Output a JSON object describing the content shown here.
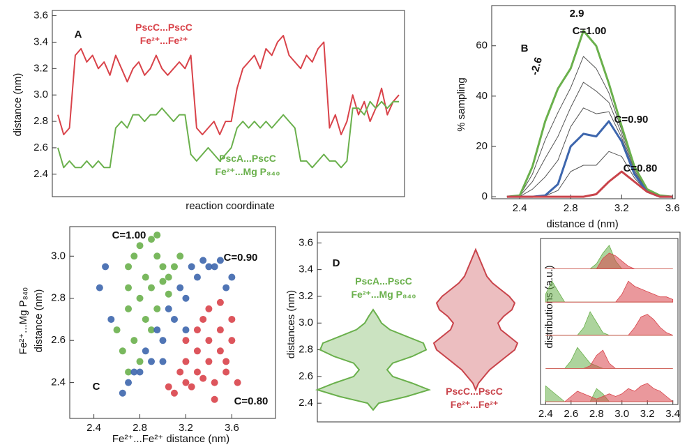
{
  "chart_data": [
    {
      "type": "line",
      "panel": "A",
      "ylabel": "distance (nm)",
      "xlabel": "reaction coordinate",
      "ylim": [
        2.23,
        3.64
      ],
      "yticks": [
        2.4,
        2.6,
        2.8,
        {
          "value": 3,
          "label": "3.0"
        },
        3.2,
        3.4,
        3.6
      ],
      "series": [
        {
          "name": "PscC...PscC\nFe²⁺...Fe²⁺",
          "color": "#d9434a",
          "values": [
            2.85,
            2.7,
            2.75,
            3.3,
            3.35,
            3.25,
            3.3,
            3.2,
            3.25,
            3.15,
            3.3,
            3.2,
            3.1,
            3.2,
            3.25,
            3.15,
            3.2,
            3.3,
            3.2,
            3.15,
            3.2,
            3.25,
            3.2,
            3.3,
            2.75,
            2.7,
            2.75,
            2.8,
            2.7,
            2.8,
            2.8,
            3.05,
            3.2,
            3.25,
            3.3,
            3.2,
            3.35,
            3.3,
            3.4,
            3.45,
            3.3,
            3.25,
            3.2,
            3.3,
            3.25,
            3.35,
            3.4,
            2.75,
            2.85,
            2.7,
            2.8,
            3.0,
            2.85,
            2.95,
            2.8,
            2.9,
            3.05,
            2.85,
            2.95,
            3.0
          ]
        },
        {
          "name": "PscA...PscC\nFe²⁺...Mg P₈₄₀",
          "color": "#6ab04c",
          "values": [
            2.6,
            2.45,
            2.5,
            2.45,
            2.45,
            2.5,
            2.45,
            2.5,
            2.45,
            2.45,
            2.75,
            2.8,
            2.75,
            2.85,
            2.85,
            2.8,
            2.85,
            2.85,
            2.9,
            2.85,
            2.8,
            2.85,
            2.85,
            2.55,
            2.5,
            2.55,
            2.6,
            2.55,
            2.5,
            2.55,
            2.6,
            2.75,
            2.8,
            2.75,
            2.8,
            2.75,
            2.8,
            2.75,
            2.8,
            2.85,
            2.8,
            2.75,
            2.5,
            2.5,
            2.45,
            2.5,
            2.55,
            2.5,
            2.5,
            2.45,
            2.5,
            2.9,
            2.9,
            2.85,
            2.95,
            2.9,
            2.95,
            2.9,
            2.95,
            2.95
          ]
        }
      ]
    },
    {
      "type": "line",
      "panel": "B",
      "ylabel": "% sampling",
      "xlabel": "distance d (nm)",
      "x": [
        2.3,
        2.4,
        2.5,
        2.6,
        2.7,
        2.8,
        2.9,
        3.0,
        3.1,
        3.2,
        3.3,
        3.4,
        3.5,
        3.6
      ],
      "xlim": [
        2.18,
        3.62
      ],
      "xticks": [
        2.4,
        2.8,
        3.2,
        3.6
      ],
      "ylim": [
        -0.8,
        76
      ],
      "yticks": [
        0,
        20,
        40,
        60
      ],
      "annotations": [
        "2.9",
        "-2.6"
      ],
      "series": [
        {
          "color": "#555555",
          "values": [
            0,
            0.4,
            9,
            22.6,
            33.5,
            43.3,
            55.8,
            51,
            41.3,
            26.5,
            11.3,
            2.8,
            0.4,
            0
          ]
        },
        {
          "color": "#555555",
          "values": [
            0,
            0.3,
            6,
            15.3,
            24,
            35.5,
            45.5,
            42,
            37.5,
            25,
            10.5,
            2.5,
            0.3,
            0
          ]
        },
        {
          "color": "#555555",
          "values": [
            0,
            0.1,
            3,
            7.9,
            14.5,
            27.8,
            35.3,
            33,
            33.8,
            23.5,
            9.8,
            2.3,
            0.1,
            0
          ]
        },
        {
          "color": "#555555",
          "values": [
            0,
            0,
            0,
            0.3,
            2.5,
            10,
            12.5,
            12.5,
            18,
            16,
            7.5,
            2,
            0,
            0
          ]
        },
        {
          "name": "C=1.00",
          "color": "#6ab04c",
          "values": [
            0,
            0.5,
            12,
            30,
            43,
            51,
            66,
            60,
            45,
            28,
            12,
            3,
            0.5,
            0
          ]
        },
        {
          "name": "C=0.90",
          "color": "#3d66ad",
          "values": [
            0,
            0,
            0,
            0.5,
            5,
            20,
            25,
            24,
            30,
            22,
            9,
            2,
            0,
            0
          ]
        },
        {
          "name": "C=0.80",
          "color": "#c9444b",
          "values": [
            0,
            0,
            0,
            0,
            0,
            0,
            0,
            1,
            6,
            10,
            6,
            2,
            0,
            0
          ]
        }
      ]
    },
    {
      "type": "scatter",
      "panel": "C",
      "ylabel": [
        "Fe²⁺...Mg P₈₄₀",
        "distance (nm)"
      ],
      "xlabel": "Fe²⁺...Fe²⁺ distance (nm)",
      "xlim": [
        2.19,
        3.98
      ],
      "xticks": [
        2.4,
        2.8,
        3.2,
        3.6
      ],
      "ylim": [
        2.23,
        3.14
      ],
      "yticks": [
        2.4,
        2.6,
        2.8,
        {
          "value": 3,
          "label": "3.0"
        }
      ],
      "series": [
        {
          "name": "C=1.00",
          "color": "#6ab04c",
          "x": [
            2.7,
            2.75,
            2.8,
            2.85,
            2.9,
            2.95,
            3.0,
            3.05,
            3.1,
            2.7,
            2.8,
            2.9,
            3.0,
            2.75,
            2.85,
            2.95,
            3.05,
            2.7,
            2.8,
            2.9,
            2.65,
            2.7,
            2.95,
            3.15,
            2.6
          ],
          "values": [
            2.95,
            3.0,
            3.05,
            2.9,
            3.08,
            3.0,
            2.95,
            2.9,
            2.95,
            2.75,
            2.8,
            2.85,
            2.88,
            2.6,
            2.7,
            2.75,
            2.82,
            2.45,
            2.5,
            2.65,
            2.55,
            2.85,
            3.1,
            3.0,
            2.65
          ]
        },
        {
          "name": "C=0.90",
          "color": "#3d66ad",
          "x": [
            2.7,
            2.8,
            2.9,
            3.0,
            3.1,
            3.2,
            3.3,
            3.4,
            3.5,
            2.75,
            2.85,
            2.95,
            3.05,
            3.15,
            3.25,
            3.35,
            3.45,
            2.45,
            2.5,
            2.55,
            3.55,
            3.0,
            3.2,
            3.6,
            2.65
          ],
          "values": [
            2.4,
            2.45,
            2.5,
            2.6,
            2.7,
            2.8,
            2.9,
            2.95,
            2.98,
            2.45,
            2.55,
            2.65,
            2.75,
            2.85,
            2.95,
            2.98,
            2.95,
            2.85,
            2.95,
            2.7,
            2.85,
            2.5,
            2.65,
            2.9,
            2.35
          ]
        },
        {
          "name": "C=0.80",
          "color": "#d9434a",
          "x": [
            3.1,
            3.2,
            3.3,
            3.4,
            3.5,
            3.2,
            3.3,
            3.4,
            3.5,
            3.6,
            3.25,
            3.35,
            3.45,
            3.55,
            3.15,
            3.05,
            3.3,
            3.4,
            3.5,
            3.6,
            3.65,
            3.2,
            3.45,
            3.35,
            3.55
          ],
          "values": [
            2.35,
            2.4,
            2.45,
            2.5,
            2.55,
            2.5,
            2.55,
            2.6,
            2.65,
            2.7,
            2.38,
            2.42,
            2.4,
            2.5,
            2.45,
            2.38,
            2.65,
            2.75,
            2.78,
            2.6,
            2.4,
            2.6,
            2.32,
            2.7,
            2.45
          ]
        }
      ]
    },
    {
      "type": "violin",
      "panel": "D",
      "ylabel": "distances (nm)",
      "ylim": [
        2.26,
        3.68
      ],
      "yticks": [
        2.4,
        2.6,
        2.8,
        {
          "value": 3,
          "label": "3.0"
        },
        3.2,
        3.4,
        3.6
      ],
      "y": [
        2.35,
        2.4,
        2.45,
        2.5,
        2.55,
        2.6,
        2.65,
        2.7,
        2.75,
        2.8,
        2.85,
        2.9,
        2.95,
        3.0,
        3.05,
        3.1,
        3.15,
        3.2,
        3.25,
        3.3,
        3.35,
        3.4,
        3.45,
        3.5,
        3.55
      ],
      "series": [
        {
          "name": "PscA...PscC\nFe²⁺...Mg P₈₄₀",
          "color": "#6ab04c",
          "values": [
            0,
            0.1,
            0.6,
            1.0,
            0.7,
            0.35,
            0.25,
            0.35,
            0.7,
            0.95,
            0.9,
            0.6,
            0.3,
            0.15,
            0.08,
            0,
            null,
            null,
            null,
            null,
            null,
            null,
            null,
            null,
            null
          ]
        },
        {
          "name": "PscC...PscC\nFe²⁺...Fe²⁺",
          "color": "#c9444b",
          "values": [
            null,
            null,
            null,
            0,
            0.05,
            0.15,
            0.25,
            0.4,
            0.55,
            0.7,
            0.75,
            0.6,
            0.45,
            0.4,
            0.5,
            0.65,
            0.7,
            0.6,
            0.45,
            0.3,
            0.2,
            0.15,
            0.1,
            0.05,
            0
          ]
        }
      ]
    },
    {
      "type": "area",
      "ylabel": "distributions (a.u.)",
      "x": [
        2.4,
        2.45,
        2.5,
        2.55,
        2.6,
        2.65,
        2.7,
        2.75,
        2.8,
        2.85,
        2.9,
        2.95,
        3.0,
        3.05,
        3.1,
        3.15,
        3.2,
        3.25,
        3.3,
        3.35,
        3.4
      ],
      "xlim": [
        2.36,
        3.44
      ],
      "xticks": [
        2.4,
        2.6,
        2.8,
        {
          "value": 3,
          "label": "3.0"
        },
        3.2,
        3.4
      ],
      "rows": [
        {
          "series": [
            {
              "color": "#6ab04c",
              "values": [
                0,
                0,
                0,
                0,
                0,
                0,
                0,
                0,
                0.2,
                0.6,
                0.9,
                0.3,
                0,
                0,
                0,
                0,
                0,
                0,
                0,
                0,
                0
              ]
            },
            {
              "color": "#d9434a",
              "values": [
                0,
                0,
                0,
                0,
                0,
                0,
                0,
                0,
                0,
                0.4,
                0.6,
                0.5,
                0.3,
                0.1,
                0,
                0,
                0,
                0,
                0,
                0,
                0
              ]
            }
          ]
        },
        {
          "series": [
            {
              "color": "#6ab04c",
              "values": [
                0.3,
                0.8,
                0.4,
                0,
                0,
                0,
                0,
                0,
                0,
                0,
                0,
                0,
                0,
                0,
                0,
                0,
                0,
                0,
                0,
                0,
                0
              ]
            },
            {
              "color": "#d9434a",
              "values": [
                0,
                0,
                0,
                0,
                0,
                0,
                0,
                0,
                0,
                0,
                0,
                0,
                0.3,
                0.8,
                0.6,
                0.5,
                0.4,
                0.3,
                0.2,
                0.2,
                0.1
              ]
            }
          ]
        },
        {
          "series": [
            {
              "color": "#6ab04c",
              "values": [
                0,
                0,
                0,
                0,
                0,
                0,
                0.3,
                0.9,
                0.5,
                0.1,
                0,
                0,
                0,
                0,
                0,
                0,
                0,
                0,
                0,
                0,
                0
              ]
            },
            {
              "color": "#d9434a",
              "values": [
                0,
                0,
                0,
                0,
                0,
                0,
                0,
                0,
                0,
                0,
                0,
                0,
                0,
                0,
                0.3,
                0.7,
                0.8,
                0.6,
                0.3,
                0.1,
                0
              ]
            }
          ]
        },
        {
          "series": [
            {
              "color": "#6ab04c",
              "values": [
                0,
                0,
                0,
                0,
                0.3,
                0.8,
                0.5,
                0.2,
                0.1,
                0,
                0,
                0,
                0,
                0,
                0,
                0,
                0,
                0,
                0,
                0,
                0
              ]
            },
            {
              "color": "#d9434a",
              "values": [
                0,
                0,
                0,
                0,
                0,
                0,
                0,
                0.1,
                0.5,
                0.7,
                0.2,
                0,
                0,
                0,
                0,
                0,
                0,
                0,
                0,
                0,
                0
              ]
            }
          ]
        },
        {
          "series": [
            {
              "color": "#6ab04c",
              "values": [
                0.6,
                0.4,
                0.2,
                0,
                0,
                0,
                0,
                0,
                0.5,
                0.3,
                0,
                0,
                0,
                0,
                0,
                0,
                0,
                0,
                0,
                0,
                0
              ]
            },
            {
              "color": "#d9434a",
              "values": [
                0,
                0,
                0,
                0,
                0.2,
                0.4,
                0.3,
                0.2,
                0.1,
                0.2,
                0.3,
                0.2,
                0.3,
                0.5,
                0.4,
                0.6,
                0.7,
                0.5,
                0.4,
                0.2,
                0
              ]
            }
          ]
        }
      ]
    }
  ]
}
